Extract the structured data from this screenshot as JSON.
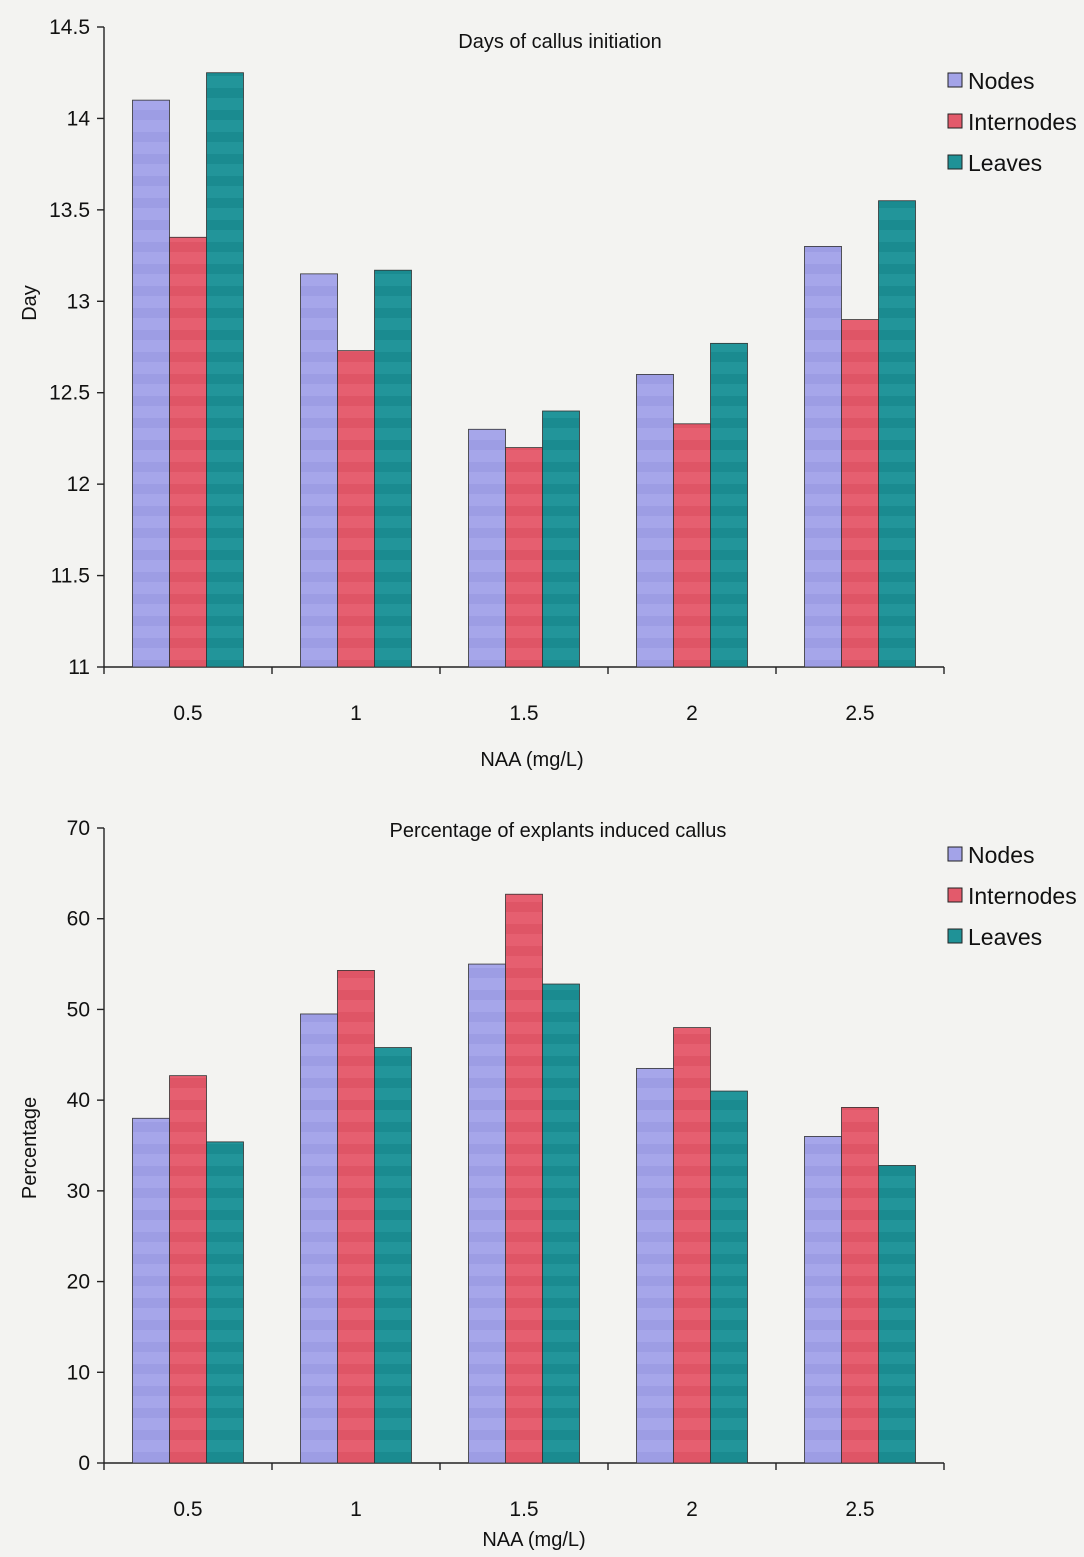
{
  "chart_data": [
    {
      "type": "bar",
      "title": "Days of callus initiation",
      "xlabel": "NAA (mg/L)",
      "ylabel": "Day",
      "categories": [
        "0.5",
        "1",
        "1.5",
        "2",
        "2.5"
      ],
      "ylim": [
        11,
        14.5
      ],
      "yticks": [
        "11",
        "11.5",
        "12",
        "12.5",
        "13",
        "13.5",
        "14",
        "14.5"
      ],
      "series": [
        {
          "name": "Nodes",
          "color": "#a3a3e8",
          "values": [
            14.1,
            13.15,
            12.3,
            12.6,
            13.3
          ]
        },
        {
          "name": "Internodes",
          "color": "#e35a6b",
          "values": [
            13.35,
            12.73,
            12.2,
            12.33,
            12.9
          ]
        },
        {
          "name": "Leaves",
          "color": "#1f9297",
          "values": [
            14.25,
            13.17,
            12.4,
            12.77,
            13.55
          ]
        }
      ],
      "legend": "right",
      "grid": false
    },
    {
      "type": "bar",
      "title": "Percentage of explants induced callus",
      "xlabel": "NAA (mg/L)",
      "ylabel": "Percentage",
      "categories": [
        "0.5",
        "1",
        "1.5",
        "2",
        "2.5"
      ],
      "ylim": [
        0,
        70
      ],
      "yticks": [
        "0",
        "10",
        "20",
        "30",
        "40",
        "50",
        "60",
        "70"
      ],
      "series": [
        {
          "name": "Nodes",
          "color": "#a3a3e8",
          "values": [
            38,
            49.5,
            55,
            43.5,
            36
          ]
        },
        {
          "name": "Internodes",
          "color": "#e35a6b",
          "values": [
            42.7,
            54.3,
            62.7,
            48,
            39.2
          ]
        },
        {
          "name": "Leaves",
          "color": "#1f9297",
          "values": [
            35.4,
            45.8,
            52.8,
            41,
            32.8
          ]
        }
      ],
      "legend": "right",
      "grid": false
    }
  ]
}
